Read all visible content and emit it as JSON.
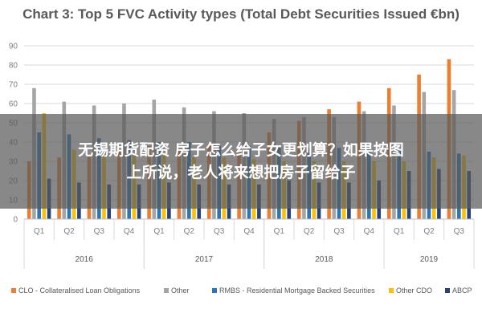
{
  "chart_data": {
    "type": "bar",
    "title": "Chart 3: Top 5 FVC Activity types (Total Debt Securities Issued €bn)",
    "categories": [
      "Q1",
      "Q2",
      "Q3",
      "Q4",
      "Q1",
      "Q2",
      "Q3",
      "Q4",
      "Q1",
      "Q2",
      "Q3",
      "Q4",
      "Q1",
      "Q2",
      "Q3"
    ],
    "years": [
      {
        "label": "2016",
        "start": 0,
        "count": 4
      },
      {
        "label": "2017",
        "start": 4,
        "count": 4
      },
      {
        "label": "2018",
        "start": 8,
        "count": 4
      },
      {
        "label": "2019",
        "start": 12,
        "count": 3
      }
    ],
    "ylim": [
      0,
      90
    ],
    "yticks": [
      0,
      10,
      20,
      30,
      40,
      50,
      60,
      70,
      80,
      90
    ],
    "legend_position": "bottom",
    "series": [
      {
        "name": "CLO - Collateralised Loan Obligations",
        "color": "#ed7d31",
        "values": [
          30,
          32,
          33,
          35,
          38,
          36,
          38,
          35,
          45,
          51,
          57,
          61,
          68,
          75,
          83
        ]
      },
      {
        "name": "Other",
        "color": "#a5a5a5",
        "values": [
          68,
          61,
          59,
          60,
          62,
          58,
          56,
          55,
          52,
          53,
          53,
          56,
          59,
          66,
          67
        ]
      },
      {
        "name": "RMBS - Residential Mortgage Backed Securities",
        "color": "#2e75b6",
        "values": [
          45,
          44,
          42,
          41,
          40,
          40,
          38,
          38,
          38,
          37,
          37,
          37,
          36,
          35,
          34
        ]
      },
      {
        "name": "Other CDO",
        "color": "#ffc000",
        "values": [
          55,
          36,
          34,
          33,
          33,
          32,
          32,
          31,
          30,
          30,
          30,
          30,
          30,
          32,
          33
        ]
      },
      {
        "name": "ABCP",
        "color": "#264478",
        "values": [
          21,
          19,
          18,
          18,
          19,
          18,
          18,
          18,
          20,
          19,
          19,
          20,
          25,
          26,
          25
        ]
      }
    ]
  },
  "overlay": {
    "line1": "无锡期货配资 房子怎么给子女更划算？如果按图",
    "line2": "上所说，老人将来想把房子留给子"
  }
}
